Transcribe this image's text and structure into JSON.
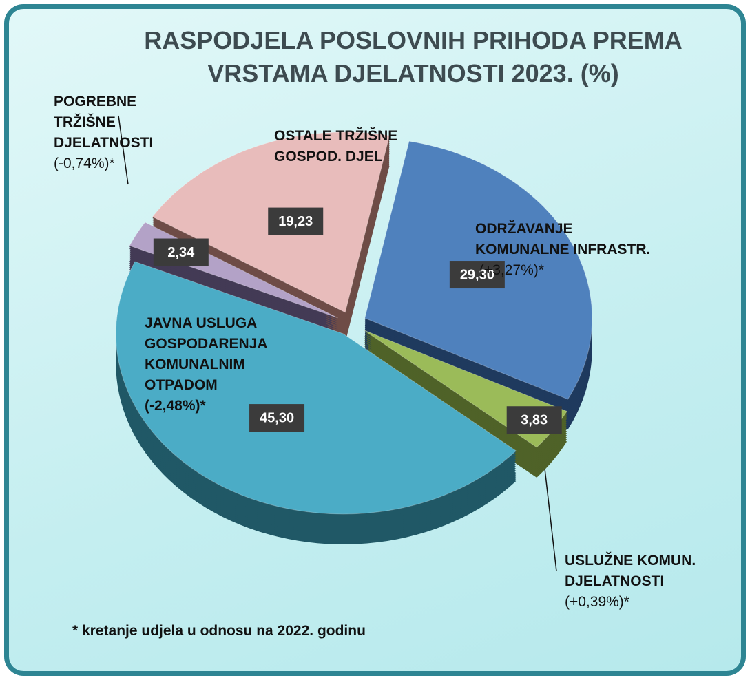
{
  "chart_data": {
    "type": "pie",
    "title": [
      "RASPODJELA POSLOVNIH PRIHODA PREMA",
      "VRSTAMA DJELATNOSTI  2023.  (%)"
    ],
    "categories": [
      "OSTALE TRŽIŠNE GOSPOD. DJEL",
      "ODRŽAVANJE KOMUNALNE INFRASTR.",
      "USLUŽNE KOMUN. DJELATNOSTI",
      "JAVNA USLUGA GOSPODARENJA KOMUNALNIM OTPADOM",
      "POGREBNE TRŽIŠNE DJELATNOSTI"
    ],
    "changes": [
      null,
      "(+3,27%)*",
      "(+0,39%)*",
      "(-2,48%)*",
      "(-0,74%)*"
    ],
    "values": [
      19.23,
      29.3,
      3.83,
      45.3,
      2.34
    ],
    "value_labels": [
      "19,23",
      "29,30",
      "3,83",
      "45,30",
      "2,34"
    ],
    "colors": [
      "#e8bcbb",
      "#4f81bd",
      "#9bbb59",
      "#4bacc6",
      "#b3a2c7"
    ],
    "side_colors": [
      "#6e4c47",
      "#1f3a5e",
      "#4f6228",
      "#205866",
      "#433a55"
    ],
    "footnote": "* kretanje udjela u odnosu na 2022. godinu"
  }
}
